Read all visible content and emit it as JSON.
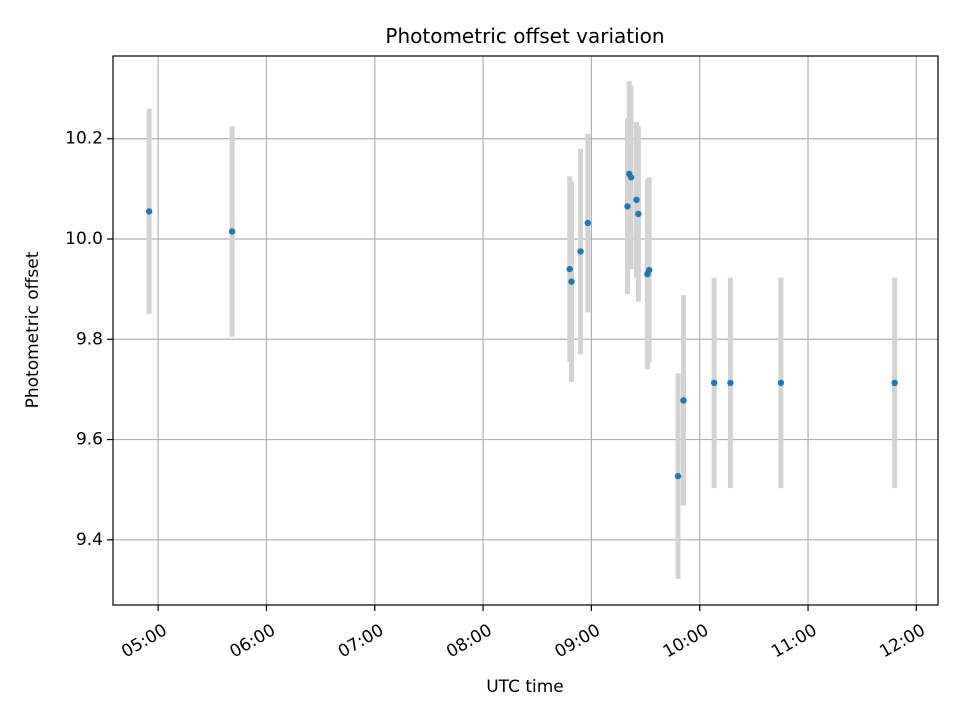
{
  "chart_data": {
    "type": "scatter",
    "title": "Photometric offset variation",
    "xlabel": "UTC time",
    "ylabel": "Photometric offset",
    "xlim": [
      "04:35",
      "12:12"
    ],
    "ylim": [
      9.27,
      10.365
    ],
    "x_ticks": [
      "05:00",
      "06:00",
      "07:00",
      "08:00",
      "09:00",
      "10:00",
      "11:00",
      "12:00"
    ],
    "y_ticks": [
      9.4,
      9.6,
      9.8,
      10.0,
      10.2
    ],
    "grid": true,
    "colors": {
      "points": "#1f77b4",
      "error_bars": "#d3d3d3",
      "grid": "#b0b0b0"
    },
    "series": [
      {
        "points": [
          {
            "x": "04:55",
            "y": 10.055,
            "err": 0.205
          },
          {
            "x": "05:41",
            "y": 10.015,
            "err": 0.21
          },
          {
            "x": "08:48",
            "y": 9.94,
            "err": 0.185
          },
          {
            "x": "08:49",
            "y": 9.915,
            "err": 0.2
          },
          {
            "x": "08:54",
            "y": 9.975,
            "err": 0.205
          },
          {
            "x": "08:58",
            "y": 10.032,
            "err": 0.178
          },
          {
            "x": "09:20",
            "y": 10.065,
            "err": 0.175
          },
          {
            "x": "09:21",
            "y": 10.13,
            "err": 0.185
          },
          {
            "x": "09:22",
            "y": 10.123,
            "err": 0.183
          },
          {
            "x": "09:25",
            "y": 10.078,
            "err": 0.155
          },
          {
            "x": "09:26",
            "y": 10.05,
            "err": 0.175
          },
          {
            "x": "09:31",
            "y": 9.93,
            "err": 0.19
          },
          {
            "x": "09:32",
            "y": 9.938,
            "err": 0.185
          },
          {
            "x": "09:48",
            "y": 9.527,
            "err": 0.205
          },
          {
            "x": "09:51",
            "y": 9.678,
            "err": 0.21
          },
          {
            "x": "10:08",
            "y": 9.713,
            "err": 0.21
          },
          {
            "x": "10:17",
            "y": 9.713,
            "err": 0.21
          },
          {
            "x": "10:45",
            "y": 9.713,
            "err": 0.21
          },
          {
            "x": "11:48",
            "y": 9.713,
            "err": 0.21
          }
        ]
      }
    ]
  }
}
